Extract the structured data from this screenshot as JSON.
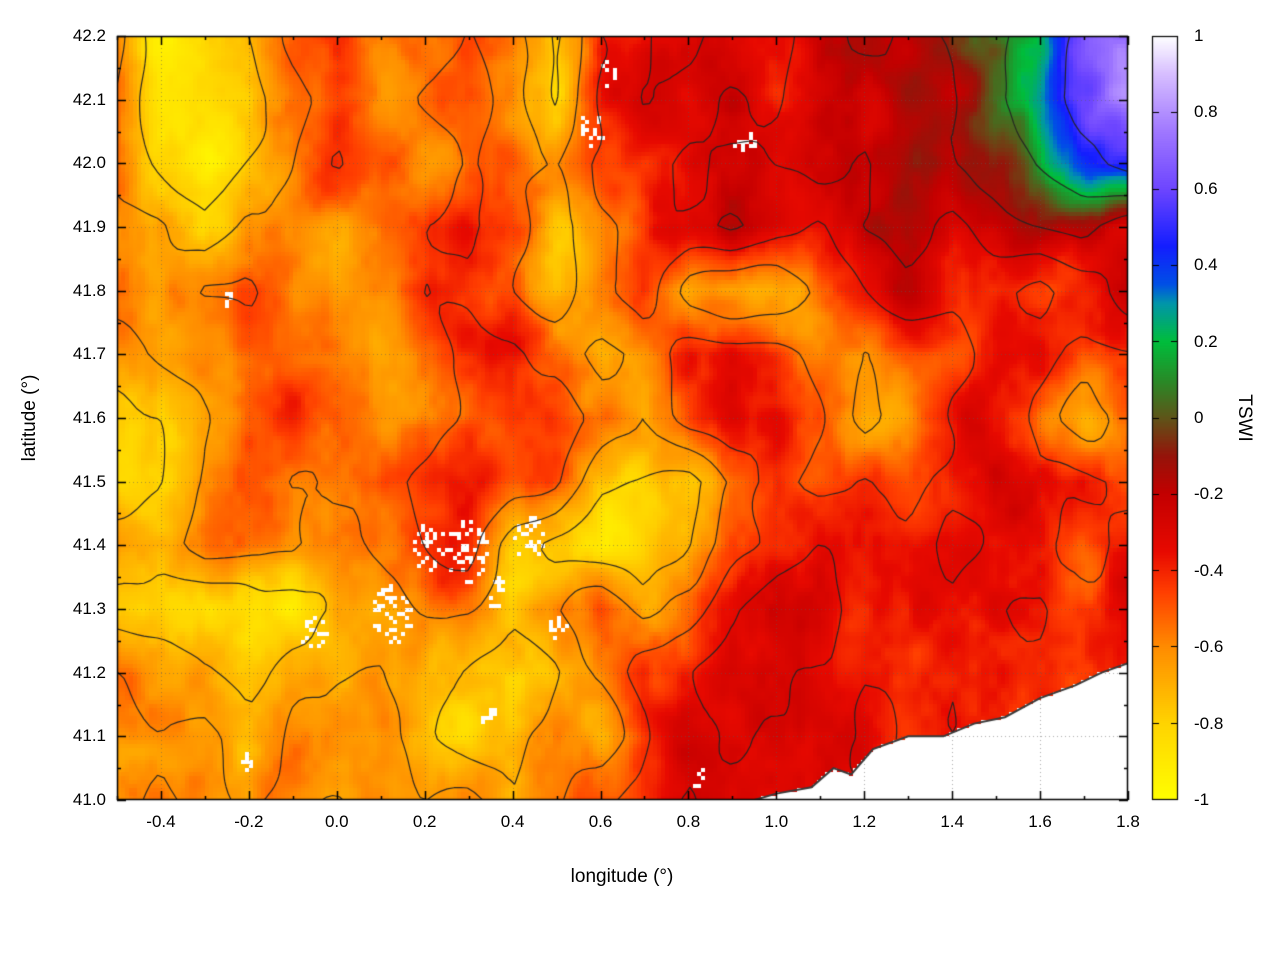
{
  "figure": {
    "xlabel": "longitude (°)",
    "ylabel": "latitude (°)",
    "colorbar_label": "TSWI"
  },
  "chart_data": {
    "type": "heatmap",
    "variable": "TSWI",
    "title": "",
    "xlabel": "longitude (°)",
    "ylabel": "latitude (°)",
    "colorbar_label": "TSWI",
    "x_range": [
      -0.5,
      1.8
    ],
    "y_range": [
      41.0,
      42.2
    ],
    "z_range": [
      -1,
      1
    ],
    "grid_on": true,
    "x_ticks": [
      -0.4,
      -0.2,
      0,
      0.2,
      0.4,
      0.6,
      0.8,
      1,
      1.2,
      1.4,
      1.6,
      1.8
    ],
    "x_tick_labels": [
      "-0.4",
      "-0.2",
      "0.0",
      "0.2",
      "0.4",
      "0.6",
      "0.8",
      "1.0",
      "1.2",
      "1.4",
      "1.6",
      "1.8"
    ],
    "x_minor_ticks": [
      -0.5,
      -0.3,
      -0.1,
      0.1,
      0.3,
      0.5,
      0.7,
      0.9,
      1.1,
      1.3,
      1.5,
      1.7
    ],
    "y_ticks": [
      41.0,
      41.1,
      41.2,
      41.3,
      41.4,
      41.5,
      41.6,
      41.7,
      41.8,
      41.9,
      42.0,
      42.1,
      42.2
    ],
    "y_tick_labels": [
      "41.0",
      "41.1",
      "41.2",
      "41.3",
      "41.4",
      "41.5",
      "41.6",
      "41.7",
      "41.8",
      "41.9",
      "42.0",
      "42.1",
      "42.2"
    ],
    "y_minor_ticks": [
      41.05,
      41.15,
      41.25,
      41.35,
      41.45,
      41.55,
      41.65,
      41.75,
      41.85,
      41.95,
      42.05,
      42.15
    ],
    "colorbar_ticks": [
      1,
      0.8,
      0.6,
      0.4,
      0.2,
      0,
      -0.2,
      -0.4,
      -0.6,
      -0.8,
      -1
    ],
    "colorbar_tick_labels": [
      "1",
      "0.8",
      "0.6",
      "0.4",
      "0.2",
      "0",
      "-0.2",
      "-0.4",
      "-0.6",
      "-0.8",
      "-1"
    ],
    "palette": [
      {
        "v": -1.0,
        "color": "#ffff00"
      },
      {
        "v": -0.8,
        "color": "#ffd400"
      },
      {
        "v": -0.6,
        "color": "#ff8c00"
      },
      {
        "v": -0.45,
        "color": "#ff3c00"
      },
      {
        "v": -0.35,
        "color": "#e80a00"
      },
      {
        "v": -0.2,
        "color": "#c40000"
      },
      {
        "v": -0.1,
        "color": "#96140a"
      },
      {
        "v": 0.0,
        "color": "#5f5519"
      },
      {
        "v": 0.1,
        "color": "#288c28"
      },
      {
        "v": 0.2,
        "color": "#00be3c"
      },
      {
        "v": 0.3,
        "color": "#0096aa"
      },
      {
        "v": 0.35,
        "color": "#0050e6"
      },
      {
        "v": 0.45,
        "color": "#141eff"
      },
      {
        "v": 0.6,
        "color": "#6e46ff"
      },
      {
        "v": 0.75,
        "color": "#a078ff"
      },
      {
        "v": 0.9,
        "color": "#d7beff"
      },
      {
        "v": 1.0,
        "color": "#ffffff"
      }
    ],
    "grid_lon": [
      -0.5,
      -0.4,
      -0.3,
      -0.2,
      -0.1,
      0.0,
      0.1,
      0.2,
      0.3,
      0.4,
      0.5,
      0.6,
      0.7,
      0.8,
      0.9,
      1.0,
      1.1,
      1.2,
      1.3,
      1.4,
      1.5,
      1.6,
      1.7,
      1.8
    ],
    "grid_lat": [
      42.2,
      42.1,
      42.0,
      41.9,
      41.8,
      41.7,
      41.6,
      41.5,
      41.4,
      41.3,
      41.2,
      41.1,
      41.0
    ],
    "grid_values": [
      [
        -0.55,
        -0.9,
        -0.85,
        -0.75,
        -0.6,
        -0.5,
        -0.6,
        -0.55,
        -0.45,
        -0.6,
        -0.8,
        -0.4,
        -0.35,
        -0.25,
        -0.4,
        -0.35,
        -0.2,
        -0.15,
        -0.2,
        -0.1,
        0.05,
        0.25,
        0.55,
        0.75
      ],
      [
        -0.6,
        -0.85,
        -0.9,
        -0.8,
        -0.65,
        -0.55,
        -0.6,
        -0.45,
        -0.4,
        -0.55,
        -0.75,
        -0.4,
        -0.25,
        -0.35,
        -0.25,
        -0.35,
        -0.2,
        -0.3,
        -0.2,
        -0.15,
        0.1,
        0.3,
        0.55,
        0.8
      ],
      [
        -0.6,
        -0.8,
        -0.85,
        -0.7,
        -0.6,
        -0.45,
        -0.55,
        -0.6,
        -0.45,
        -0.55,
        -0.6,
        -0.4,
        -0.35,
        -0.25,
        -0.35,
        -0.3,
        -0.25,
        -0.35,
        -0.2,
        -0.15,
        -0.05,
        0.15,
        0.35,
        0.5
      ],
      [
        -0.65,
        -0.6,
        -0.75,
        -0.6,
        -0.55,
        -0.6,
        -0.55,
        -0.45,
        -0.4,
        -0.5,
        -0.7,
        -0.55,
        -0.4,
        -0.35,
        -0.25,
        -0.35,
        -0.4,
        -0.25,
        -0.2,
        -0.3,
        -0.2,
        -0.15,
        -0.1,
        -0.3
      ],
      [
        -0.55,
        -0.6,
        -0.45,
        -0.4,
        -0.55,
        -0.6,
        -0.55,
        -0.45,
        -0.5,
        -0.55,
        -0.7,
        -0.55,
        -0.4,
        -0.7,
        -0.75,
        -0.7,
        -0.55,
        -0.4,
        -0.25,
        -0.35,
        -0.4,
        -0.5,
        -0.4,
        -0.25
      ],
      [
        -0.7,
        -0.6,
        -0.55,
        -0.45,
        -0.5,
        -0.55,
        -0.6,
        -0.55,
        -0.45,
        -0.4,
        -0.5,
        -0.7,
        -0.6,
        -0.4,
        -0.35,
        -0.4,
        -0.55,
        -0.6,
        -0.55,
        -0.45,
        -0.35,
        -0.4,
        -0.55,
        -0.45
      ],
      [
        -0.8,
        -0.75,
        -0.6,
        -0.55,
        -0.5,
        -0.55,
        -0.6,
        -0.55,
        -0.45,
        -0.4,
        -0.35,
        -0.5,
        -0.65,
        -0.4,
        -0.3,
        -0.35,
        -0.5,
        -0.7,
        -0.55,
        -0.4,
        -0.35,
        -0.5,
        -0.65,
        -0.5
      ],
      [
        -0.85,
        -0.75,
        -0.6,
        -0.55,
        -0.6,
        -0.55,
        -0.5,
        -0.4,
        -0.35,
        -0.4,
        -0.45,
        -0.7,
        -0.75,
        -0.8,
        -0.6,
        -0.4,
        -0.55,
        -0.45,
        -0.5,
        -0.4,
        -0.3,
        -0.4,
        -0.35,
        -0.45
      ],
      [
        -0.6,
        -0.7,
        -0.55,
        -0.6,
        -0.55,
        -0.6,
        -0.55,
        -0.45,
        -0.4,
        -0.7,
        -0.8,
        -0.85,
        -0.8,
        -0.75,
        -0.55,
        -0.4,
        -0.3,
        -0.35,
        -0.4,
        -0.3,
        -0.35,
        -0.4,
        -0.5,
        -0.4
      ],
      [
        -0.8,
        -0.85,
        -0.9,
        -0.85,
        -0.8,
        -0.65,
        -0.6,
        -0.55,
        -0.6,
        -0.7,
        -0.6,
        -0.45,
        -0.7,
        -0.55,
        -0.35,
        -0.25,
        -0.2,
        -0.35,
        -0.4,
        -0.35,
        -0.4,
        -0.45,
        -0.4,
        -0.35
      ],
      [
        -0.6,
        -0.65,
        -0.75,
        -0.8,
        -0.65,
        -0.6,
        -0.55,
        -0.7,
        -0.75,
        -0.8,
        -0.75,
        -0.6,
        -0.4,
        -0.35,
        -0.25,
        -0.3,
        -0.35,
        -0.3,
        -0.35,
        -0.4,
        -0.35,
        -0.4,
        -0.4,
        -0.35
      ],
      [
        -0.55,
        -0.6,
        -0.55,
        -0.7,
        -0.6,
        -0.55,
        -0.6,
        -0.7,
        -0.8,
        -0.75,
        -0.6,
        -0.7,
        -0.45,
        -0.35,
        -0.3,
        -0.35,
        -0.4,
        -0.35,
        -0.35,
        -0.4,
        -0.4,
        -0.4,
        -0.4,
        -0.4
      ],
      [
        -0.55,
        -0.6,
        -0.55,
        -0.6,
        -0.55,
        -0.6,
        -0.55,
        -0.6,
        -0.55,
        -0.7,
        -0.6,
        -0.45,
        -0.4,
        -0.3,
        -0.35,
        -0.35,
        -0.35,
        -0.35,
        -0.35,
        -0.35,
        -0.35,
        -0.35,
        -0.35,
        -0.35
      ]
    ],
    "contour_levels": [
      -0.75,
      -0.6,
      -0.45,
      -0.3,
      -0.15,
      0.1,
      0.4
    ],
    "coastline": [
      [
        0.95,
        41.0
      ],
      [
        1.0,
        41.01
      ],
      [
        1.08,
        41.02
      ],
      [
        1.13,
        41.05
      ],
      [
        1.17,
        41.04
      ],
      [
        1.22,
        41.08
      ],
      [
        1.3,
        41.1
      ],
      [
        1.38,
        41.1
      ],
      [
        1.45,
        41.12
      ],
      [
        1.52,
        41.13
      ],
      [
        1.6,
        41.16
      ],
      [
        1.68,
        41.18
      ],
      [
        1.74,
        41.2
      ],
      [
        1.8,
        41.215
      ]
    ],
    "no_data_specks": [
      {
        "lon": 0.13,
        "lat": 41.29,
        "r": 0.05
      },
      {
        "lon": 0.21,
        "lat": 41.4,
        "r": 0.04
      },
      {
        "lon": 0.3,
        "lat": 41.39,
        "r": 0.05
      },
      {
        "lon": 0.37,
        "lat": 41.32,
        "r": 0.03
      },
      {
        "lon": 0.44,
        "lat": 41.41,
        "r": 0.035
      },
      {
        "lon": 0.5,
        "lat": 41.27,
        "r": 0.025
      },
      {
        "lon": -0.05,
        "lat": 41.26,
        "r": 0.03
      },
      {
        "lon": 0.58,
        "lat": 42.05,
        "r": 0.03
      },
      {
        "lon": 0.62,
        "lat": 42.14,
        "r": 0.02
      },
      {
        "lon": 0.93,
        "lat": 42.03,
        "r": 0.025
      },
      {
        "lon": -0.25,
        "lat": 41.79,
        "r": 0.015
      },
      {
        "lon": 0.83,
        "lat": 41.03,
        "r": 0.02
      },
      {
        "lon": -0.2,
        "lat": 41.06,
        "r": 0.015
      },
      {
        "lon": 0.35,
        "lat": 41.13,
        "r": 0.02
      }
    ]
  }
}
